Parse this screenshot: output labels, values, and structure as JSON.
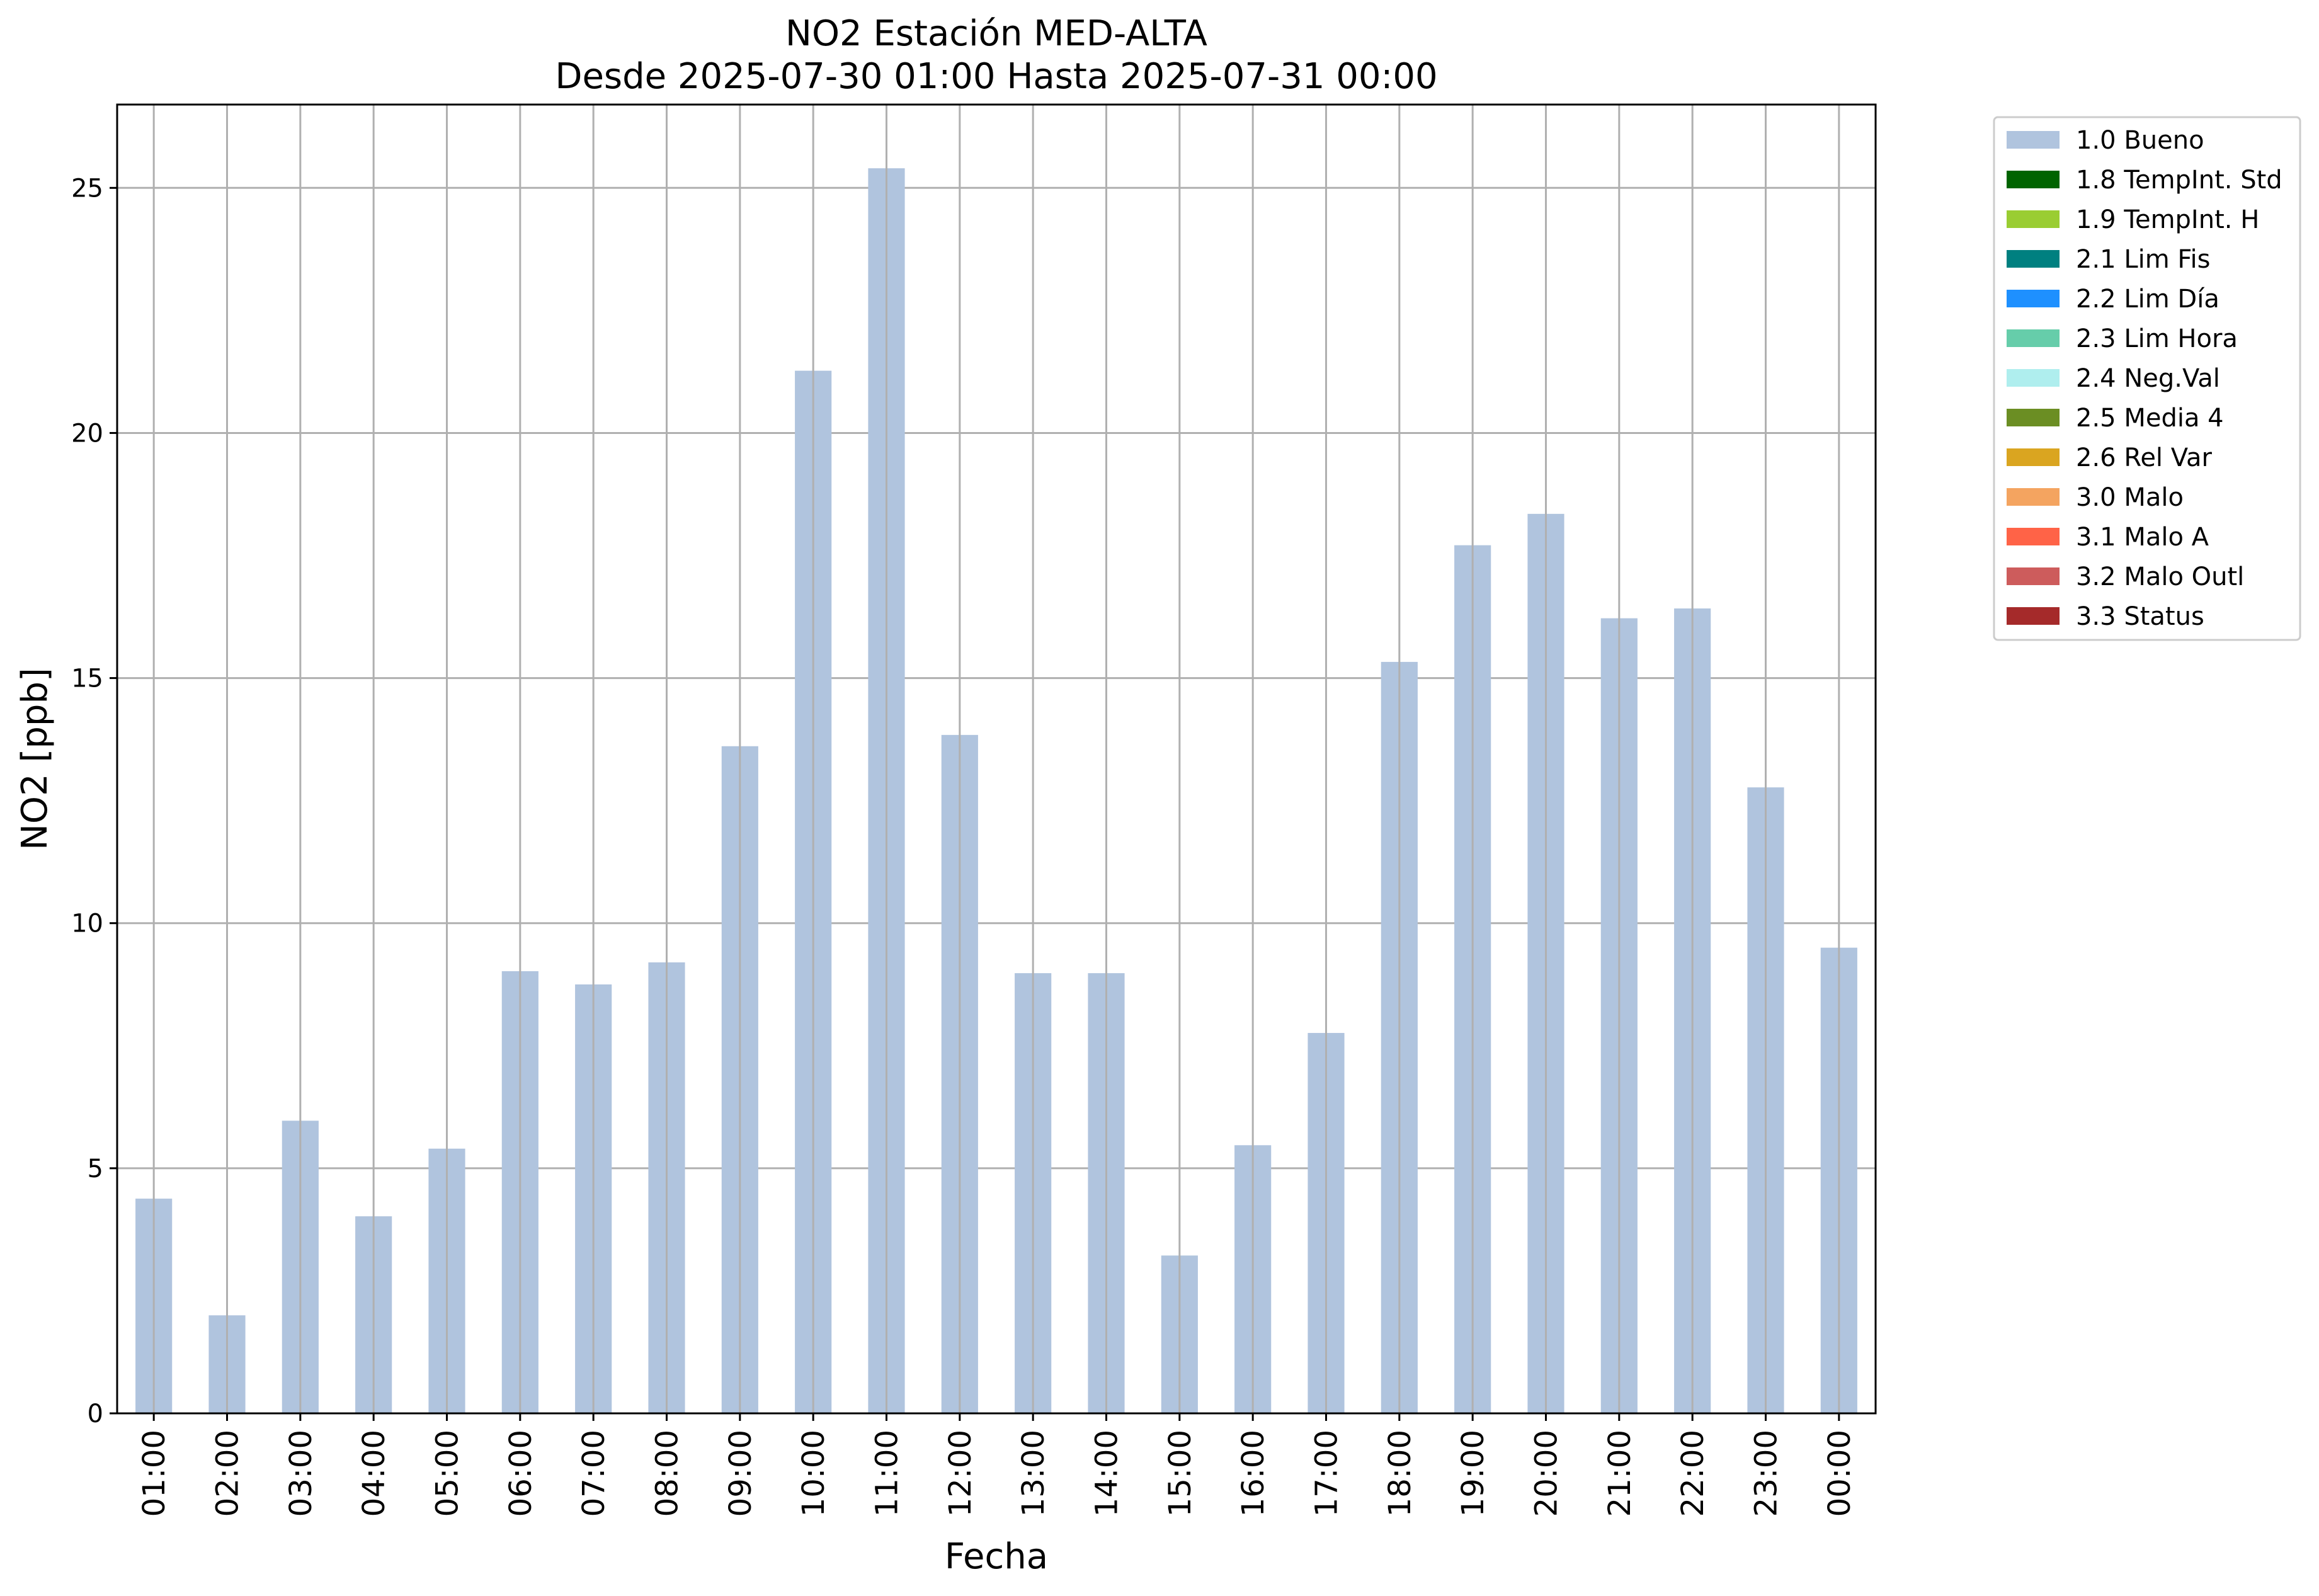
{
  "chart_data": {
    "type": "bar",
    "title": "NO2 Estación MED-ALTA",
    "subtitle": "Desde 2025-07-30 01:00 Hasta 2025-07-31 00:00",
    "xlabel": "Fecha",
    "ylabel": "NO2 [ppb]",
    "ylim": [
      0,
      26.7
    ],
    "yticks": [
      0,
      5,
      10,
      15,
      20,
      25
    ],
    "grid": true,
    "legend_position": "outside-top-right",
    "categories": [
      "01:00",
      "02:00",
      "03:00",
      "04:00",
      "05:00",
      "06:00",
      "07:00",
      "08:00",
      "09:00",
      "10:00",
      "11:00",
      "12:00",
      "13:00",
      "14:00",
      "15:00",
      "16:00",
      "17:00",
      "18:00",
      "19:00",
      "20:00",
      "21:00",
      "22:00",
      "23:00",
      "00:00"
    ],
    "series": [
      {
        "name": "1.0 Bueno",
        "color": "#b0c4de",
        "values": [
          4.38,
          2.0,
          5.97,
          4.02,
          5.4,
          9.02,
          8.75,
          9.2,
          13.61,
          21.27,
          25.4,
          13.84,
          8.98,
          8.98,
          3.22,
          5.47,
          7.76,
          15.33,
          17.71,
          18.35,
          16.22,
          16.42,
          12.77,
          9.5
        ]
      }
    ],
    "legend": [
      {
        "label": "1.0 Bueno",
        "color": "#b0c4de"
      },
      {
        "label": "1.8 TempInt. Std",
        "color": "#006400"
      },
      {
        "label": "1.9 TempInt. H",
        "color": "#9acd32"
      },
      {
        "label": "2.1 Lim Fis",
        "color": "#008080"
      },
      {
        "label": "2.2 Lim Día",
        "color": "#1e90ff"
      },
      {
        "label": "2.3 Lim Hora",
        "color": "#66cdaa"
      },
      {
        "label": "2.4 Neg.Val",
        "color": "#afeeee"
      },
      {
        "label": "2.5 Media 4",
        "color": "#6b8e23"
      },
      {
        "label": "2.6 Rel Var",
        "color": "#daa520"
      },
      {
        "label": "3.0 Malo",
        "color": "#f4a460"
      },
      {
        "label": "3.1 Malo A",
        "color": "#ff6347"
      },
      {
        "label": "3.2 Malo Outl",
        "color": "#cd5c5c"
      },
      {
        "label": "3.3 Status",
        "color": "#a52a2a"
      }
    ]
  }
}
